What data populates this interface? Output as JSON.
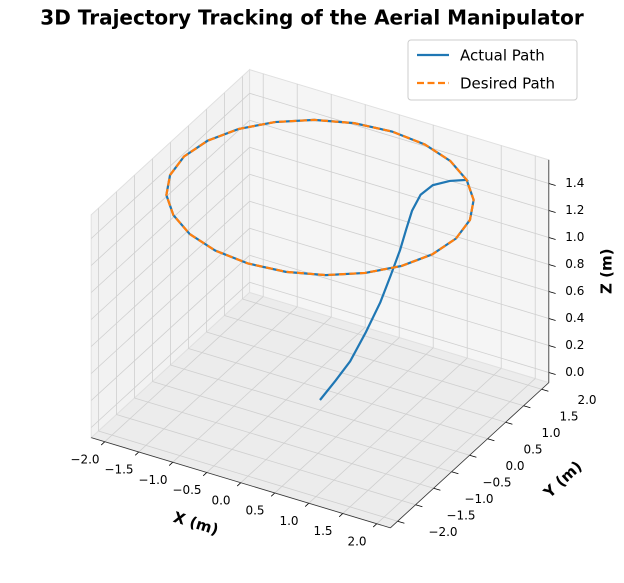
{
  "chart_data": {
    "type": "line3d",
    "title": "3D Trajectory Tracking of the Aerial Manipulator",
    "xlabel": "X (m)",
    "ylabel": "Y (m)",
    "zlabel": "Z (m)",
    "xlim": [
      -2.2,
      2.2
    ],
    "ylim": [
      -2.2,
      2.2
    ],
    "zlim": [
      -0.075,
      1.575
    ],
    "xticks": [
      {
        "value": -2,
        "label": "−2.0"
      },
      {
        "value": -1.5,
        "label": "−1.5"
      },
      {
        "value": -1,
        "label": "−1.0"
      },
      {
        "value": -0.5,
        "label": "−0.5"
      },
      {
        "value": 0,
        "label": "0.0"
      },
      {
        "value": 0.5,
        "label": "0.5"
      },
      {
        "value": 1,
        "label": "1.0"
      },
      {
        "value": 1.5,
        "label": "1.5"
      },
      {
        "value": 2,
        "label": "2.0"
      }
    ],
    "yticks": [
      {
        "value": -2,
        "label": "−2.0"
      },
      {
        "value": -1.5,
        "label": "−1.5"
      },
      {
        "value": -1,
        "label": "−1.0"
      },
      {
        "value": -0.5,
        "label": "−0.5"
      },
      {
        "value": 0,
        "label": "0.0"
      },
      {
        "value": 0.5,
        "label": "0.5"
      },
      {
        "value": 1,
        "label": "1.0"
      },
      {
        "value": 1.5,
        "label": "1.5"
      },
      {
        "value": 2,
        "label": "2.0"
      }
    ],
    "zticks": [
      {
        "value": 0,
        "label": "0.0"
      },
      {
        "value": 0.2,
        "label": "0.2"
      },
      {
        "value": 0.4,
        "label": "0.4"
      },
      {
        "value": 0.6,
        "label": "0.6"
      },
      {
        "value": 0.8,
        "label": "0.8"
      },
      {
        "value": 1,
        "label": "1.0"
      },
      {
        "value": 1.2,
        "label": "1.2"
      },
      {
        "value": 1.4,
        "label": "1.4"
      }
    ],
    "grid": true,
    "legend": "upper right",
    "series": [
      {
        "name": "Actual Path",
        "color": "#1f77b4",
        "style": "solid",
        "x": [
          0,
          0.15,
          0.29,
          0.44,
          0.58,
          0.68,
          0.77,
          0.83,
          0.885,
          0.95,
          1.05,
          1.22,
          1.41,
          1,
          0.52,
          0,
          -0.52,
          -1,
          -1.41,
          -1.73,
          -1.93,
          -2,
          -1.93,
          -1.73,
          -1.41,
          -1,
          -0.52,
          0,
          0.52,
          1,
          1.41,
          1.73,
          1.93,
          2,
          1.93,
          1.73,
          1.41
        ],
        "y": [
          0,
          0.15,
          0.29,
          0.44,
          0.58,
          0.68,
          0.77,
          0.83,
          0.885,
          1.0,
          1.15,
          1.3,
          1.41,
          1.73,
          1.93,
          2,
          1.93,
          1.73,
          1.41,
          1,
          0.52,
          0,
          -0.52,
          -1,
          -1.41,
          -1.73,
          -1.93,
          -2,
          -1.93,
          -1.73,
          -1.41,
          -1,
          -0.52,
          0,
          0.52,
          1,
          1.41
        ],
        "z": [
          0,
          0.13,
          0.26,
          0.46,
          0.67,
          0.86,
          1.04,
          1.19,
          1.32,
          1.42,
          1.47,
          1.49,
          1.5,
          1.5,
          1.5,
          1.5,
          1.5,
          1.5,
          1.5,
          1.5,
          1.5,
          1.5,
          1.5,
          1.5,
          1.5,
          1.5,
          1.5,
          1.5,
          1.5,
          1.5,
          1.5,
          1.5,
          1.5,
          1.5,
          1.5,
          1.5,
          1.5
        ]
      },
      {
        "name": "Desired Path",
        "color": "#ff7f0e",
        "style": "dashed",
        "x": [
          2,
          1.93,
          1.73,
          1.41,
          1,
          0.52,
          0,
          -0.52,
          -1,
          -1.41,
          -1.73,
          -1.93,
          -2,
          -1.93,
          -1.73,
          -1.41,
          -1,
          -0.52,
          0,
          0.52,
          1,
          1.41,
          1.73,
          1.93,
          2
        ],
        "y": [
          0,
          0.52,
          1,
          1.41,
          1.73,
          1.93,
          2,
          1.93,
          1.73,
          1.41,
          1,
          0.52,
          0,
          -0.52,
          -1,
          -1.41,
          -1.73,
          -1.93,
          -2,
          -1.93,
          -1.73,
          -1.41,
          -1,
          -0.52,
          0
        ],
        "z": [
          1.5,
          1.5,
          1.5,
          1.5,
          1.5,
          1.5,
          1.5,
          1.5,
          1.5,
          1.5,
          1.5,
          1.5,
          1.5,
          1.5,
          1.5,
          1.5,
          1.5,
          1.5,
          1.5,
          1.5,
          1.5,
          1.5,
          1.5,
          1.5,
          1.5
        ]
      }
    ]
  }
}
